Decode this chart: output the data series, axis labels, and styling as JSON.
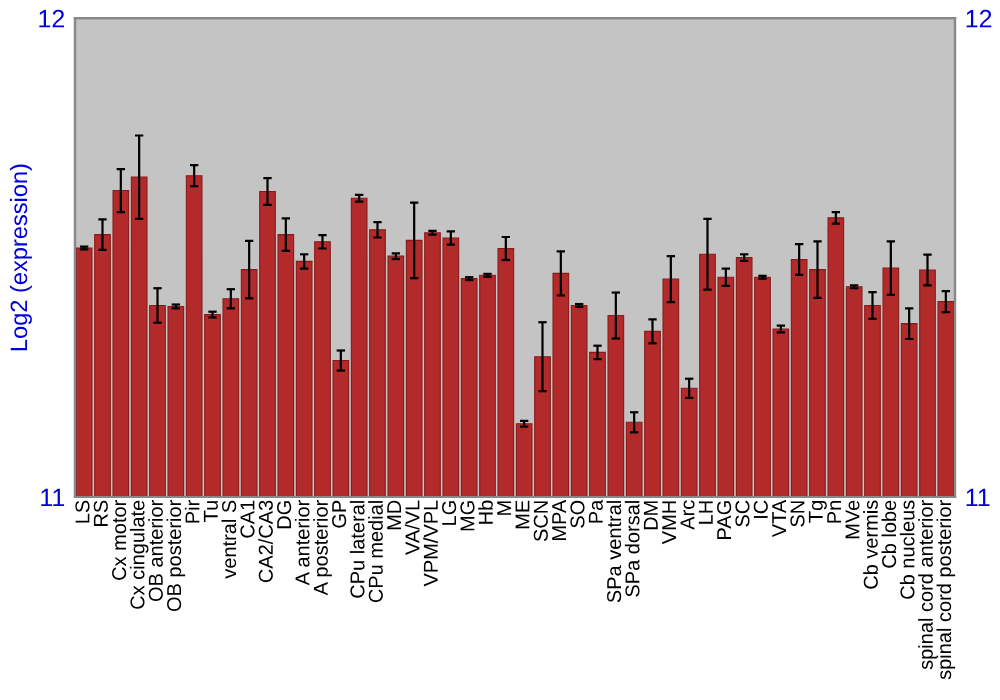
{
  "chart_data": {
    "type": "bar",
    "ylabel": "Log2 (expression)",
    "categories": [
      "LS",
      "RS",
      "Cx motor",
      "Cx cingulate",
      "OB anterior",
      "OB posterior",
      "Pir",
      "Tu",
      "ventral S",
      "CA1",
      "CA2/CA3",
      "DG",
      "A anterior",
      "A posterior",
      "GP",
      "CPu lateral",
      "CPu medial",
      "MD",
      "VA/VL",
      "VPM/VPL",
      "LG",
      "MG",
      "Hb",
      "M",
      "ME",
      "SCN",
      "MPA",
      "SO",
      "Pa",
      "SPa ventral",
      "SPa dorsal",
      "DM",
      "VMH",
      "Arc",
      "LH",
      "PAG",
      "SC",
      "IC",
      "VTA",
      "SN",
      "Tg",
      "Pn",
      "MVe",
      "Cb vermis",
      "Cb lobe",
      "Cb nucleus",
      "spinal cord anterior",
      "spinal cord posterior"
    ],
    "values": [
      11.52,
      11.548,
      11.64,
      11.668,
      11.4,
      11.398,
      11.671,
      11.381,
      11.414,
      11.475,
      11.638,
      11.548,
      11.492,
      11.533,
      11.285,
      11.624,
      11.558,
      11.503,
      11.536,
      11.552,
      11.541,
      11.456,
      11.463,
      11.519,
      11.153,
      11.293,
      11.467,
      11.4,
      11.302,
      11.379,
      11.156,
      11.346,
      11.455,
      11.227,
      11.507,
      11.459,
      11.5,
      11.459,
      11.351,
      11.496,
      11.475,
      11.583,
      11.439,
      11.4,
      11.478,
      11.362,
      11.474,
      11.408
    ],
    "errors": [
      0.003,
      0.032,
      0.045,
      0.087,
      0.036,
      0.004,
      0.022,
      0.006,
      0.02,
      0.06,
      0.028,
      0.034,
      0.015,
      0.014,
      0.021,
      0.007,
      0.016,
      0.006,
      0.079,
      0.004,
      0.014,
      0.003,
      0.003,
      0.024,
      0.006,
      0.072,
      0.046,
      0.003,
      0.014,
      0.048,
      0.021,
      0.025,
      0.048,
      0.02,
      0.074,
      0.018,
      0.007,
      0.003,
      0.007,
      0.032,
      0.059,
      0.012,
      0.003,
      0.028,
      0.056,
      0.032,
      0.032,
      0.022
    ],
    "color": "#b22a2a",
    "ylim": [
      11,
      12
    ],
    "yticks": [
      11,
      12
    ],
    "y2lim": [
      11,
      12
    ],
    "y2ticks": [
      11,
      12
    ],
    "grid": false,
    "legend": false
  }
}
